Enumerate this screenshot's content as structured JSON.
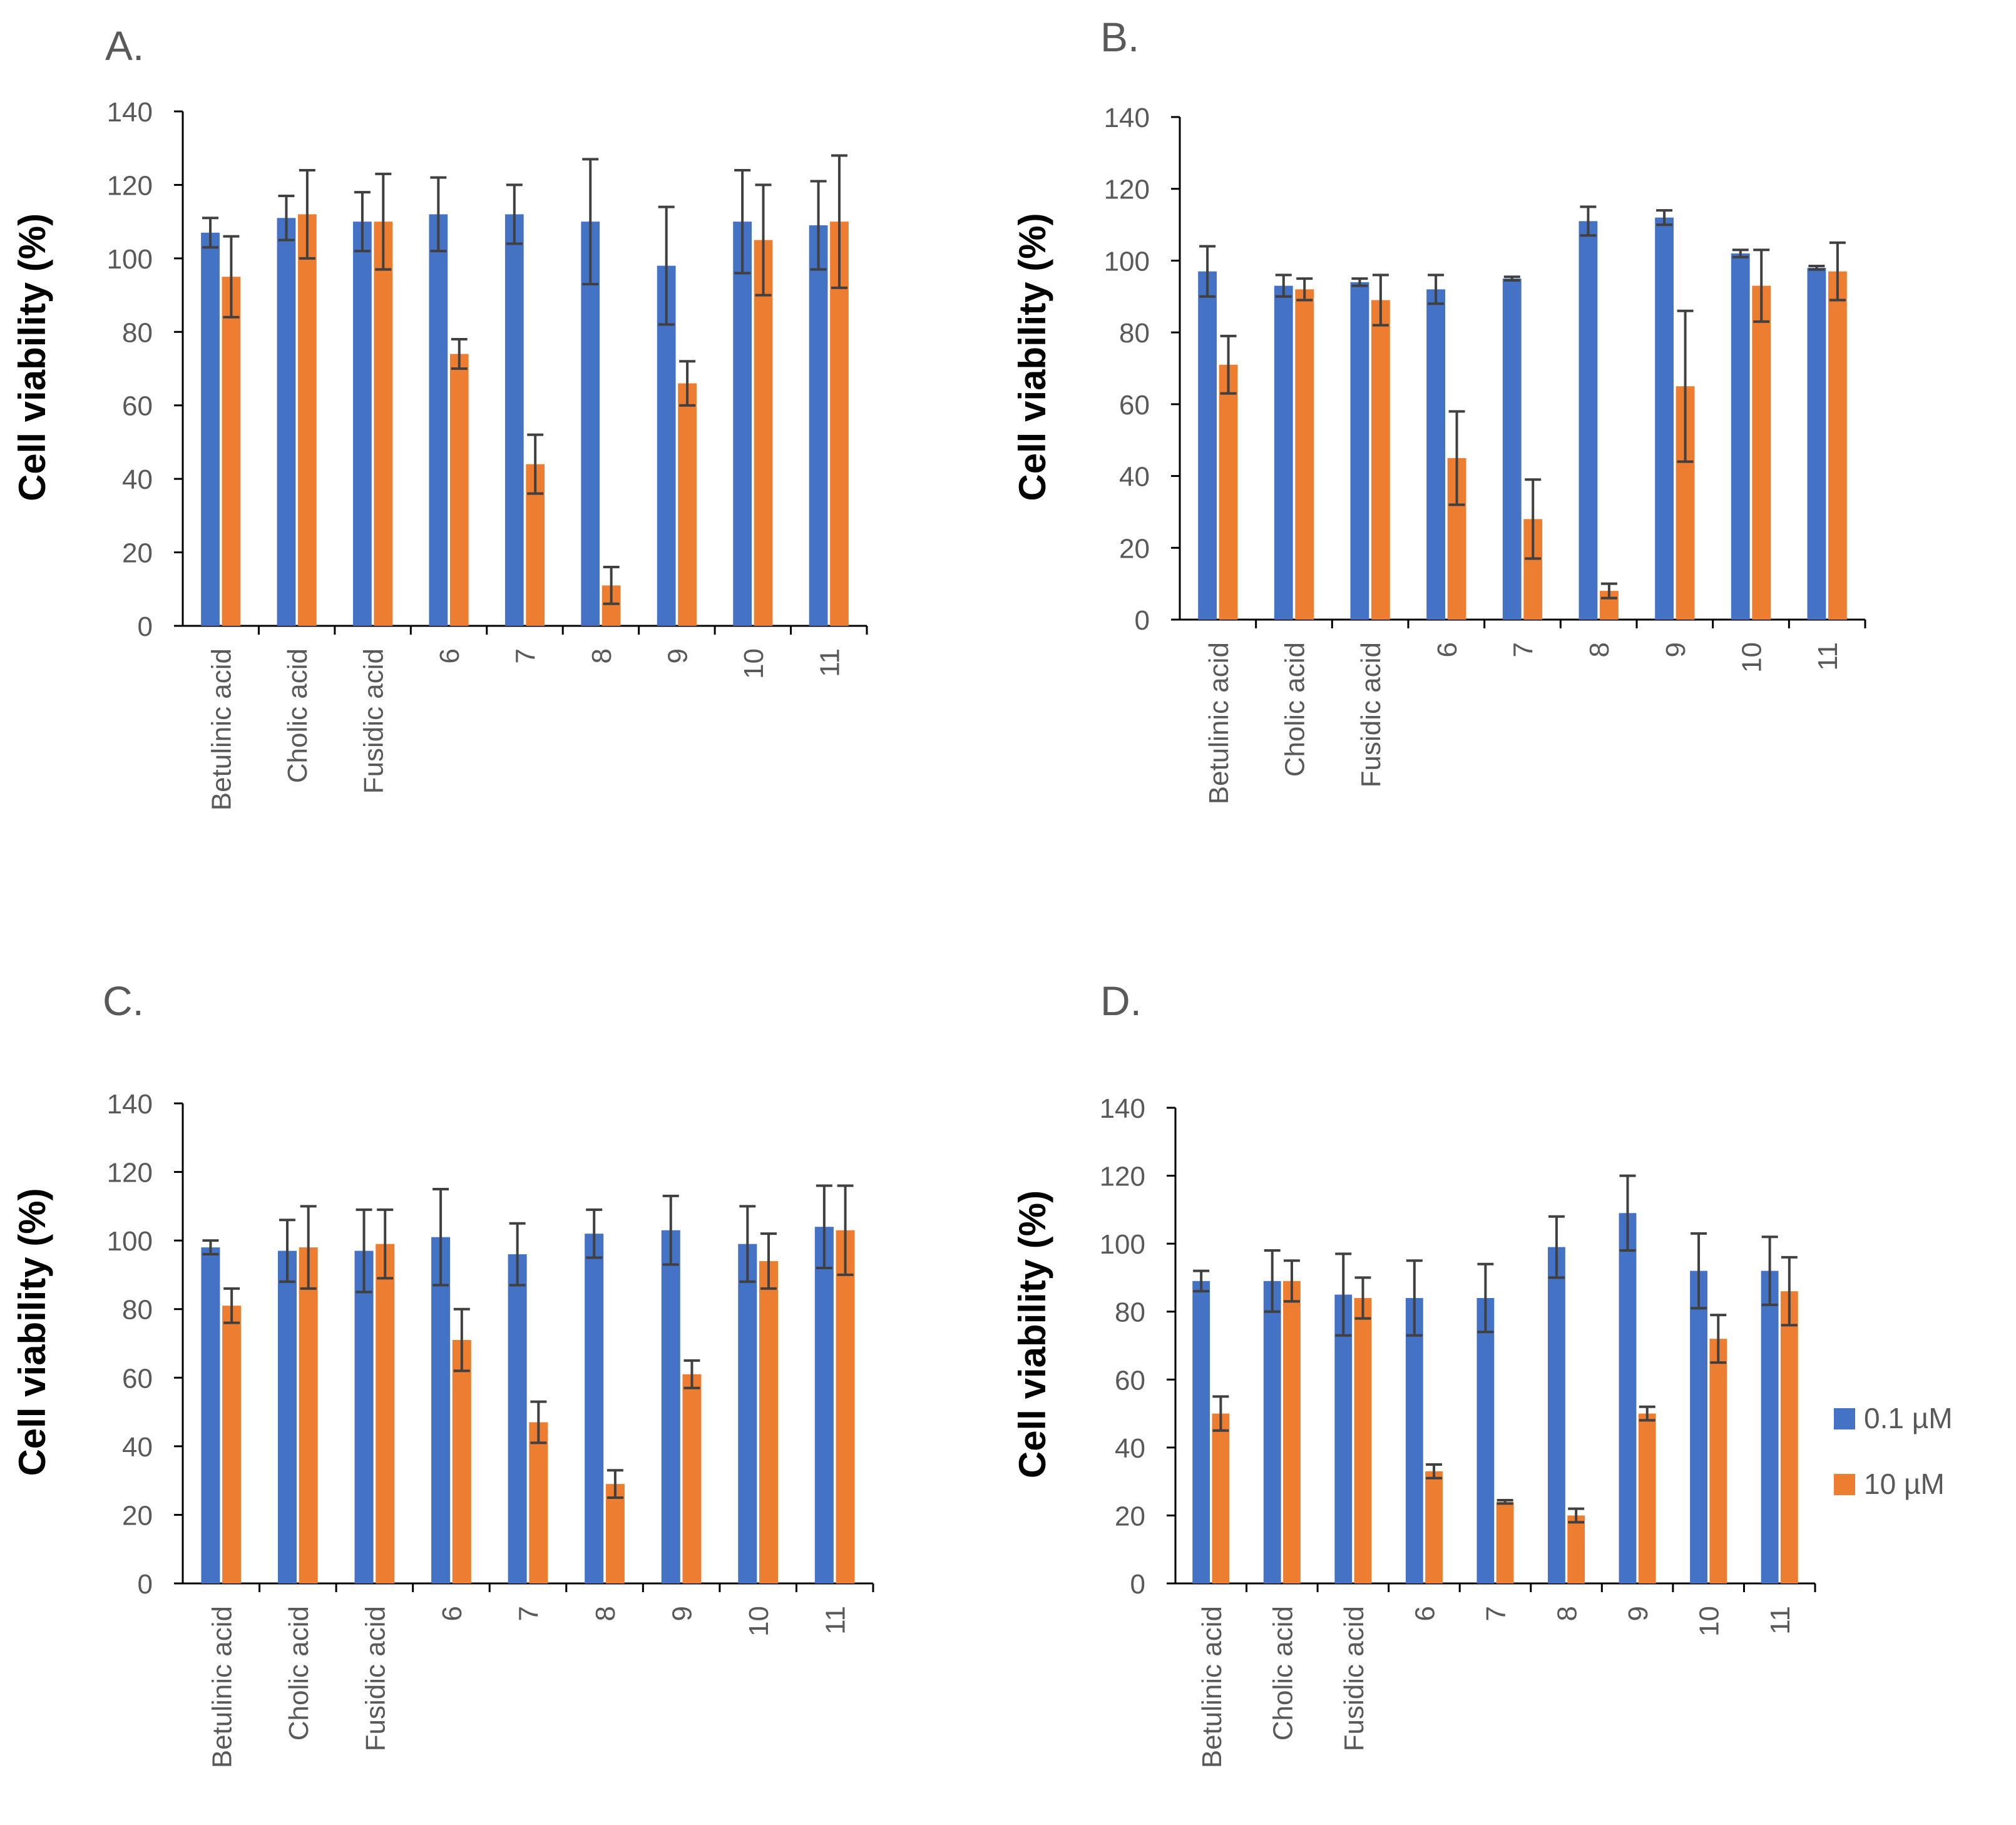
{
  "colors": {
    "series1": "#4472C4",
    "series2": "#ED7D31",
    "error": "#404040",
    "axis": "#000000",
    "text": "#595959"
  },
  "legend": [
    {
      "name": "0.1 µM",
      "color": "#4472C4"
    },
    {
      "name": "10 µM",
      "color": "#ED7D31"
    }
  ],
  "chart_data": [
    {
      "type": "bar",
      "title": "A.",
      "ylabel": "Cell viability (%)",
      "ylim": [
        0,
        140
      ],
      "yticks": [
        0,
        20,
        40,
        60,
        80,
        100,
        120,
        140
      ],
      "categories": [
        "Betulinic acid",
        "Cholic acid",
        "Fusidic acid",
        "6",
        "7",
        "8",
        "9",
        "10",
        "11"
      ],
      "series": [
        {
          "name": "0.1 µM",
          "values": [
            107,
            111,
            110,
            112,
            112,
            110,
            98,
            110,
            109
          ],
          "errors": [
            4,
            6,
            8,
            10,
            8,
            17,
            16,
            14,
            12
          ]
        },
        {
          "name": "10 µM",
          "values": [
            95,
            112,
            110,
            74,
            44,
            11,
            66,
            105,
            110
          ],
          "errors": [
            11,
            12,
            13,
            4,
            8,
            5,
            6,
            15,
            18
          ]
        }
      ]
    },
    {
      "type": "bar",
      "title": "B.",
      "ylabel": "Cell viability (%)",
      "ylim": [
        0,
        140
      ],
      "yticks": [
        0,
        20,
        40,
        60,
        80,
        100,
        120,
        140
      ],
      "categories": [
        "Betulinic acid",
        "Cholic acid",
        "Fusidic acid",
        "6",
        "7",
        "8",
        "9",
        "10",
        "11"
      ],
      "series": [
        {
          "name": "0.1 µM",
          "values": [
            97,
            93,
            94,
            92,
            95,
            111,
            112,
            102,
            98
          ],
          "errors": [
            7,
            3,
            1,
            4,
            0.5,
            4,
            2,
            1,
            0.5
          ]
        },
        {
          "name": "10 µM",
          "values": [
            71,
            92,
            89,
            45,
            28,
            8,
            65,
            93,
            97
          ],
          "errors": [
            8,
            3,
            7,
            13,
            11,
            2,
            21,
            10,
            8
          ]
        }
      ]
    },
    {
      "type": "bar",
      "title": "C.",
      "ylabel": "Cell viability (%)",
      "ylim": [
        0,
        140
      ],
      "yticks": [
        0,
        20,
        40,
        60,
        80,
        100,
        120,
        140
      ],
      "categories": [
        "Betulinic acid",
        "Cholic acid",
        "Fusidic acid",
        "6",
        "7",
        "8",
        "9",
        "10",
        "11"
      ],
      "series": [
        {
          "name": "0.1 µM",
          "values": [
            98,
            97,
            97,
            101,
            96,
            102,
            103,
            99,
            104
          ],
          "errors": [
            2,
            9,
            12,
            14,
            9,
            7,
            10,
            11,
            12
          ]
        },
        {
          "name": "10 µM",
          "values": [
            81,
            98,
            99,
            71,
            47,
            29,
            61,
            94,
            103
          ],
          "errors": [
            5,
            12,
            10,
            9,
            6,
            4,
            4,
            8,
            13
          ]
        }
      ]
    },
    {
      "type": "bar",
      "title": "D.",
      "ylabel": "Cell viability (%)",
      "ylim": [
        0,
        140
      ],
      "yticks": [
        0,
        20,
        40,
        60,
        80,
        100,
        120,
        140
      ],
      "categories": [
        "Betulinic acid",
        "Cholic acid",
        "Fusidic acid",
        "6",
        "7",
        "8",
        "9",
        "10",
        "11"
      ],
      "series": [
        {
          "name": "0.1 µM",
          "values": [
            89,
            89,
            85,
            84,
            84,
            99,
            109,
            92,
            92
          ],
          "errors": [
            3,
            9,
            12,
            11,
            10,
            9,
            11,
            11,
            10
          ]
        },
        {
          "name": "10 µM",
          "values": [
            50,
            89,
            84,
            33,
            24,
            20,
            50,
            72,
            86
          ],
          "errors": [
            5,
            6,
            6,
            2,
            0.5,
            2,
            2,
            7,
            10
          ]
        }
      ],
      "legend": "right"
    }
  ]
}
